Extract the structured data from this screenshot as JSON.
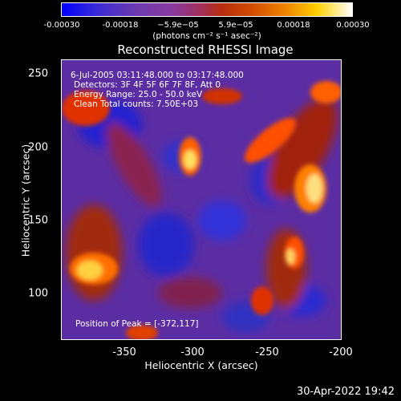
{
  "colorbar": {
    "ticks": [
      "-0.00030",
      "-0.00018",
      "−5.9e−05",
      "5.9e−05",
      "0.00018",
      "0.00030"
    ],
    "unit_label": "(photons cm⁻² s⁻¹ asec⁻²)"
  },
  "plot": {
    "title": "Reconstructed RHESSI Image",
    "xlabel": "Heliocentric X (arcsec)",
    "ylabel": "Heliocentric Y (arcsec)",
    "x_ticks": [
      "-350",
      "-300",
      "-250",
      "-200"
    ],
    "y_ticks": [
      "250",
      "200",
      "150",
      "100"
    ],
    "info_lines": [
      "6-Jul-2005 03:11:48.000 to 03:17:48.000",
      "Detectors: 3F 4F 5F 6F 7F 8F, Att 0",
      "Energy Range: 25.0 - 50.0 keV",
      "Clean    Total counts: 7.50E+03"
    ],
    "peak_label": "Position of Peak = [-372,117]"
  },
  "footer": {
    "timestamp": "30-Apr-2022 19:42"
  }
}
